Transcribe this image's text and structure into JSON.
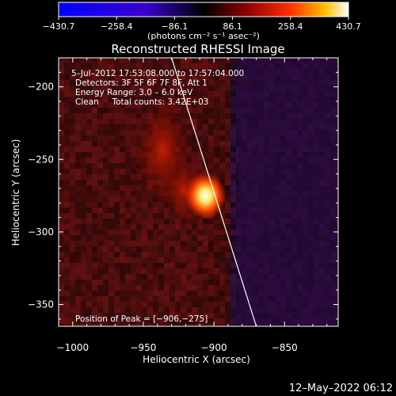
{
  "chart_data": {
    "type": "heatmap",
    "title": "Reconstructed RHESSI Image",
    "xlabel": "Heliocentric X (arcsec)",
    "ylabel": "Heliocentric Y (arcsec)",
    "xlim": [
      -1010,
      -812
    ],
    "ylim": [
      -365,
      -180
    ],
    "x_ticks": [
      -1000,
      -950,
      -900,
      -850
    ],
    "y_ticks": [
      -200,
      -250,
      -300,
      -350
    ],
    "x_tick_labels": [
      "−1000",
      "−950",
      "−900",
      "−850"
    ],
    "y_tick_labels": [
      "−200",
      "−250",
      "−300",
      "−350"
    ],
    "colorbar": {
      "min": -430.7,
      "max": 430.7,
      "tick_values": [
        -430.7,
        -258.4,
        -86.1,
        86.1,
        258.4,
        430.7
      ],
      "tick_labels": [
        "−430.7",
        "−258.4",
        "−86.1",
        "86.1",
        "258.4",
        "430.7"
      ],
      "units": "(photons cm⁻² s⁻¹ asec⁻²)"
    },
    "peak": {
      "x": -906,
      "y": -275,
      "value": 430.7
    },
    "annotations": [
      "5–Jul–2012 17:53:08.000 to 17:57:04.000",
      "Detectors: 3F 5F 6F 7F 8F, Att 1",
      "Energy Range: 3.0 – 6.0 keV",
      "Clean     Total counts: 3.42E+03"
    ],
    "peak_label": "Position of Peak = [−906,−275]",
    "limb_line": [
      [
        -930,
        -180
      ],
      [
        -870,
        -365
      ]
    ]
  },
  "footer": {
    "timestamp": "12–May–2022 06:12"
  }
}
